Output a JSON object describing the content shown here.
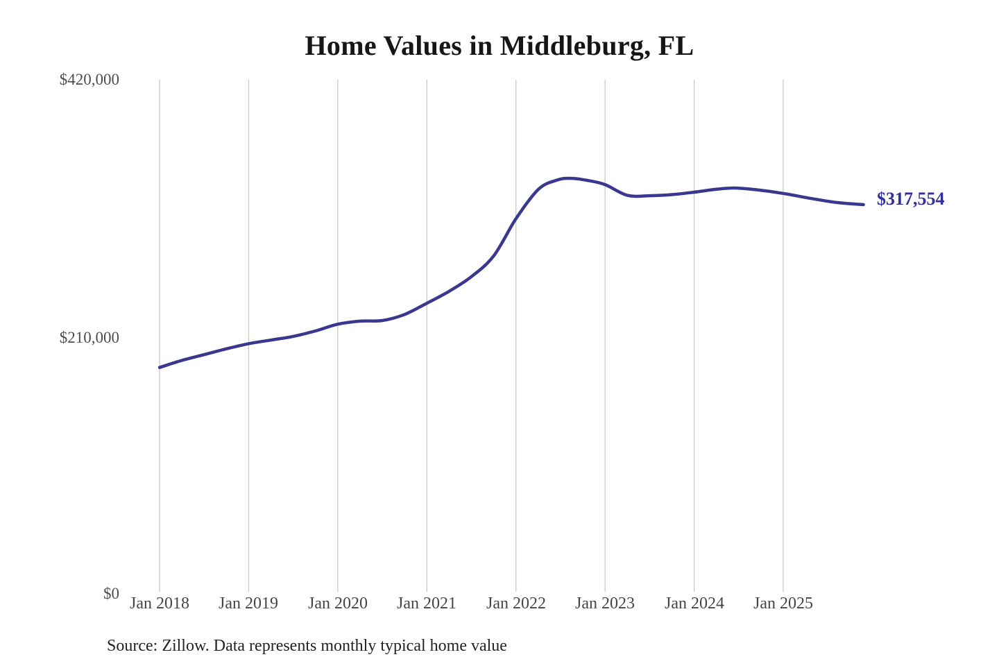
{
  "page": {
    "source_note": "Source: Zillow. Data represents monthly typical home value"
  },
  "chart_data": {
    "type": "line",
    "title": "Home Values in Middleburg, FL",
    "xlabel": "",
    "ylabel": "",
    "ylim": [
      0,
      420000
    ],
    "xlim": [
      2018,
      2025.9
    ],
    "grid": "vertical-only",
    "gridline_color": "#c9c9c9",
    "axis_label_color": "#4d4d4d",
    "y_ticks": [
      420000,
      210000,
      0
    ],
    "y_tick_labels": [
      "$420,000",
      "$210,000",
      "$0"
    ],
    "x_tick_years": [
      2018,
      2019,
      2020,
      2021,
      2022,
      2023,
      2024,
      2025
    ],
    "x_tick_labels": [
      "Jan 2018",
      "Jan 2019",
      "Jan 2020",
      "Jan 2021",
      "Jan 2022",
      "Jan 2023",
      "Jan 2024",
      "Jan 2025"
    ],
    "end_label": "$317,554",
    "end_label_color": "#322e9e",
    "latest_value": 317554,
    "series": [
      {
        "name": "Monthly typical home value",
        "color": "#3a378f",
        "x": [
          2018.0,
          2018.25,
          2018.5,
          2018.75,
          2019.0,
          2019.25,
          2019.5,
          2019.75,
          2020.0,
          2020.25,
          2020.5,
          2020.75,
          2021.0,
          2021.25,
          2021.5,
          2021.75,
          2022.0,
          2022.25,
          2022.45,
          2022.6,
          2022.8,
          2023.0,
          2023.25,
          2023.5,
          2023.75,
          2024.0,
          2024.25,
          2024.45,
          2024.7,
          2025.0,
          2025.3,
          2025.6,
          2025.9
        ],
        "values": [
          184000,
          189800,
          194500,
          199300,
          203500,
          206500,
          209500,
          214000,
          219500,
          222000,
          222500,
          227500,
          236700,
          246500,
          258500,
          275500,
          306000,
          330000,
          337500,
          339200,
          337500,
          334000,
          325200,
          324900,
          325800,
          327800,
          330200,
          331200,
          329800,
          326800,
          322800,
          319300,
          317554
        ]
      }
    ]
  }
}
